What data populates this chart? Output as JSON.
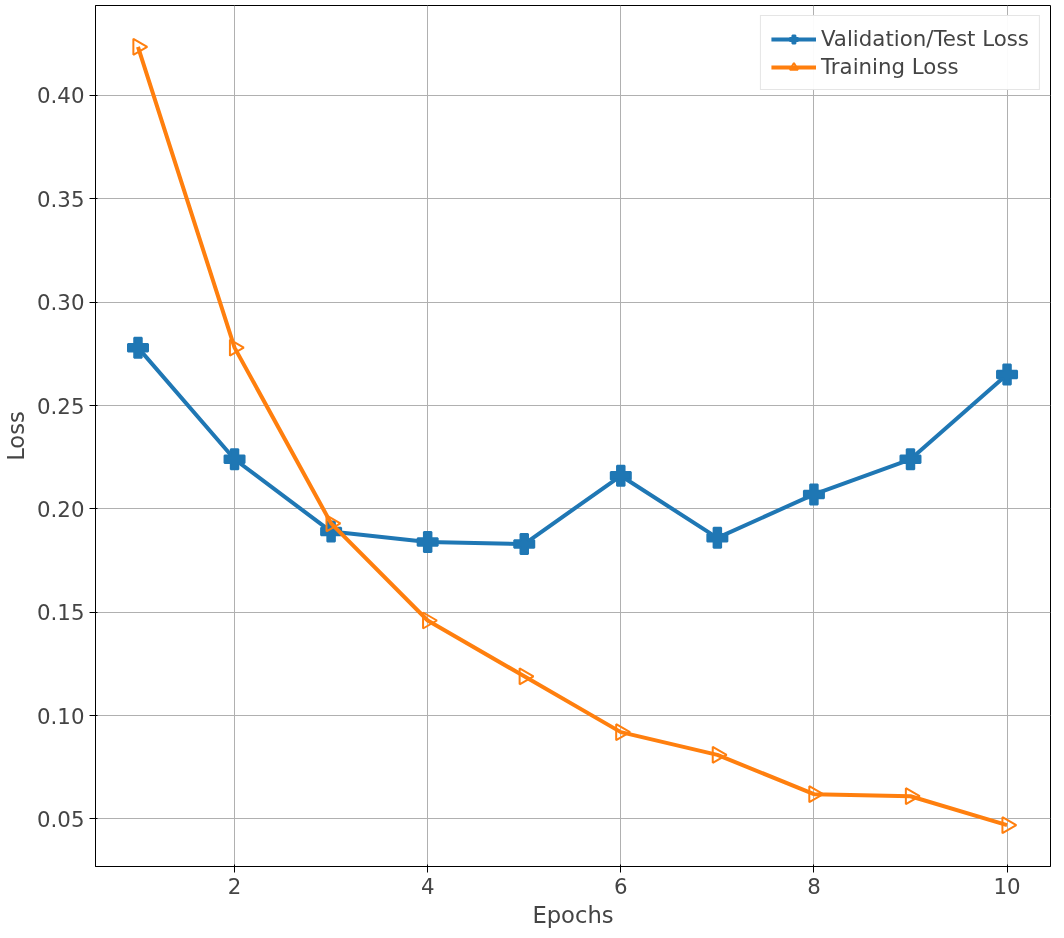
{
  "chart_data": {
    "type": "line",
    "xlabel": "Epochs",
    "ylabel": "Loss",
    "x": [
      1,
      2,
      3,
      4,
      5,
      6,
      7,
      8,
      9,
      10
    ],
    "xlim": [
      0.56,
      10.45
    ],
    "ylim": [
      0.027,
      0.4435
    ],
    "xticks": [
      2,
      4,
      6,
      8,
      10
    ],
    "yticks": [
      {
        "value": 0.05,
        "label": "0.05"
      },
      {
        "value": 0.1,
        "label": "0.10"
      },
      {
        "value": 0.15,
        "label": "0.15"
      },
      {
        "value": 0.2,
        "label": "0.20"
      },
      {
        "value": 0.25,
        "label": "0.25"
      },
      {
        "value": 0.3,
        "label": "0.30"
      },
      {
        "value": 0.35,
        "label": "0.35"
      },
      {
        "value": 0.4,
        "label": "0.40"
      }
    ],
    "grid": true,
    "legend": "top right",
    "line_style": "solid",
    "series": [
      {
        "name": "Validation/Test Loss",
        "color": "#1f77b4",
        "marker": "cross",
        "values": [
          0.278,
          0.224,
          0.189,
          0.184,
          0.183,
          0.216,
          0.186,
          0.207,
          0.224,
          0.265
        ]
      },
      {
        "name": "Training Loss",
        "color": "#ff7f0e",
        "marker": "triangle",
        "values": [
          0.4235,
          0.278,
          0.193,
          0.146,
          0.119,
          0.092,
          0.081,
          0.062,
          0.061,
          0.047
        ]
      }
    ]
  }
}
